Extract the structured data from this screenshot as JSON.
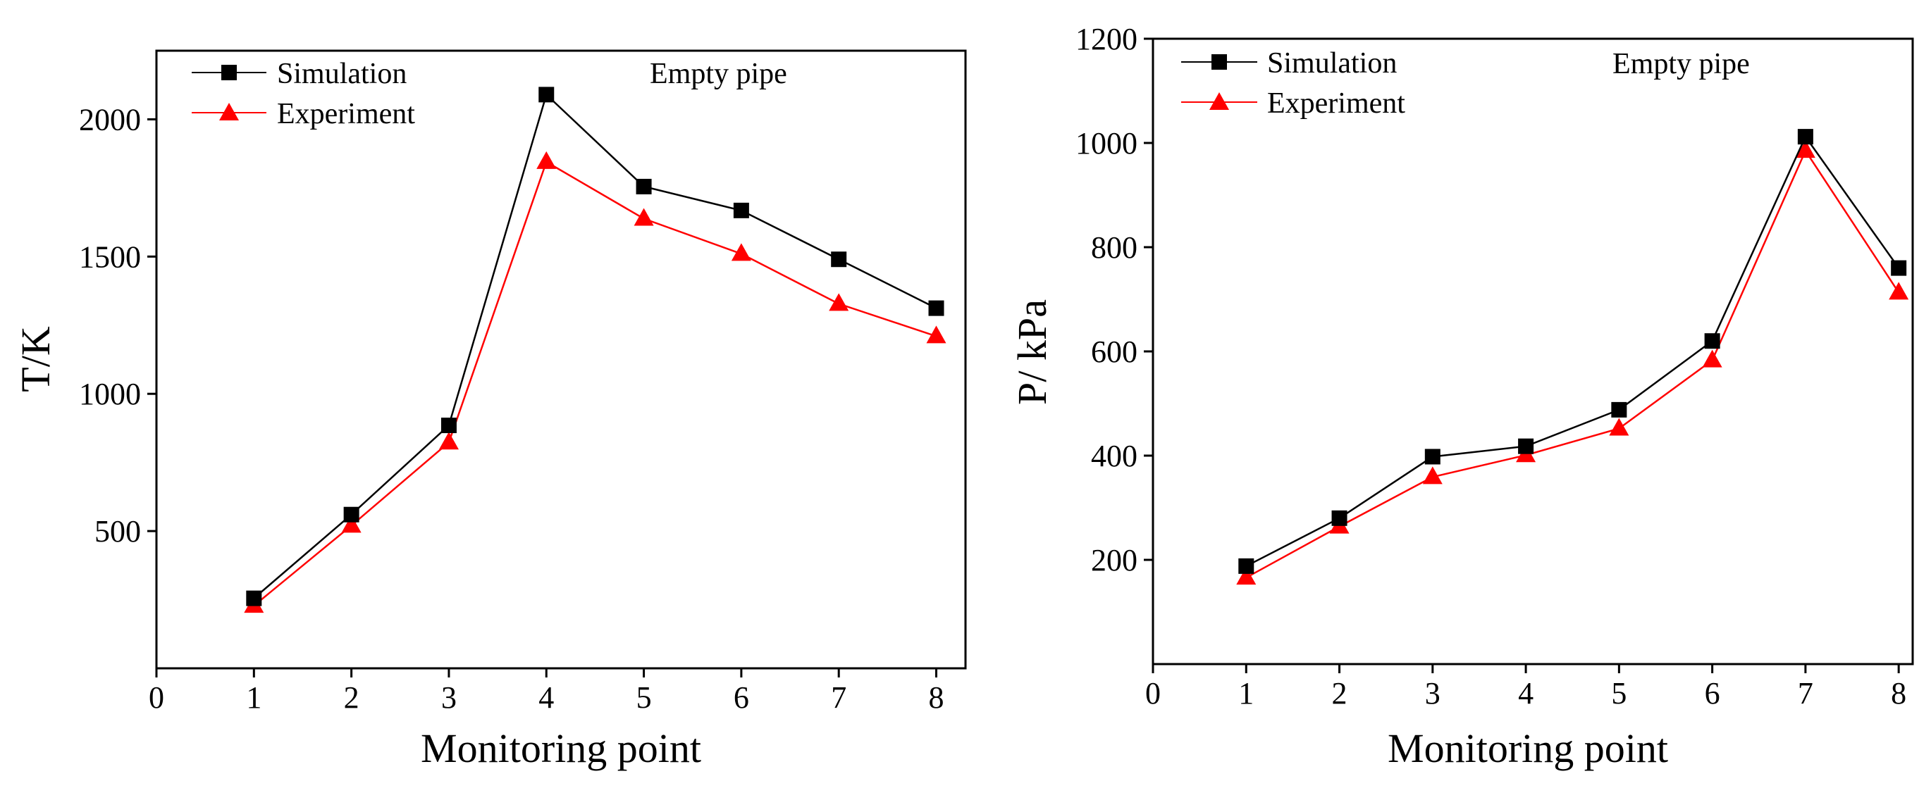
{
  "chart_data": [
    {
      "type": "line",
      "title": "",
      "annotation": "Empty pipe",
      "xlabel": "Monitoring point",
      "ylabel": "T/K",
      "xlim": [
        0,
        8.3
      ],
      "ylim": [
        0,
        2250
      ],
      "x_ticks": [
        "0",
        "1",
        "2",
        "3",
        "4",
        "5",
        "6",
        "7",
        "8"
      ],
      "y_ticks": [
        "500",
        "1000",
        "1500",
        "2000"
      ],
      "x": [
        1,
        2,
        3,
        4,
        5,
        6,
        7,
        8
      ],
      "legend_position": "top-left",
      "series": [
        {
          "name": "Simulation",
          "color": "#000000",
          "marker": "square",
          "values": [
            255,
            560,
            885,
            2090,
            1755,
            1668,
            1490,
            1312
          ]
        },
        {
          "name": "Experiment",
          "color": "#ff0000",
          "marker": "triangle",
          "values": [
            228,
            520,
            823,
            1845,
            1638,
            1510,
            1328,
            1210
          ]
        }
      ]
    },
    {
      "type": "line",
      "title": "",
      "annotation": "Empty pipe",
      "xlabel": "Monitoring point",
      "ylabel": "P/ kPa",
      "xlim": [
        0,
        8.15
      ],
      "ylim": [
        0,
        1200
      ],
      "x_ticks": [
        "0",
        "1",
        "2",
        "3",
        "4",
        "5",
        "6",
        "7",
        "8"
      ],
      "y_ticks": [
        "200",
        "400",
        "600",
        "800",
        "1000",
        "1200"
      ],
      "x": [
        1,
        2,
        3,
        4,
        5,
        6,
        7,
        8
      ],
      "legend_position": "top-left",
      "series": [
        {
          "name": "Simulation",
          "color": "#000000",
          "marker": "square",
          "values": [
            188,
            280,
            398,
            418,
            488,
            620,
            1012,
            760
          ]
        },
        {
          "name": "Experiment",
          "color": "#ff0000",
          "marker": "triangle",
          "values": [
            166,
            264,
            359,
            401,
            452,
            583,
            985,
            713
          ]
        }
      ]
    }
  ]
}
